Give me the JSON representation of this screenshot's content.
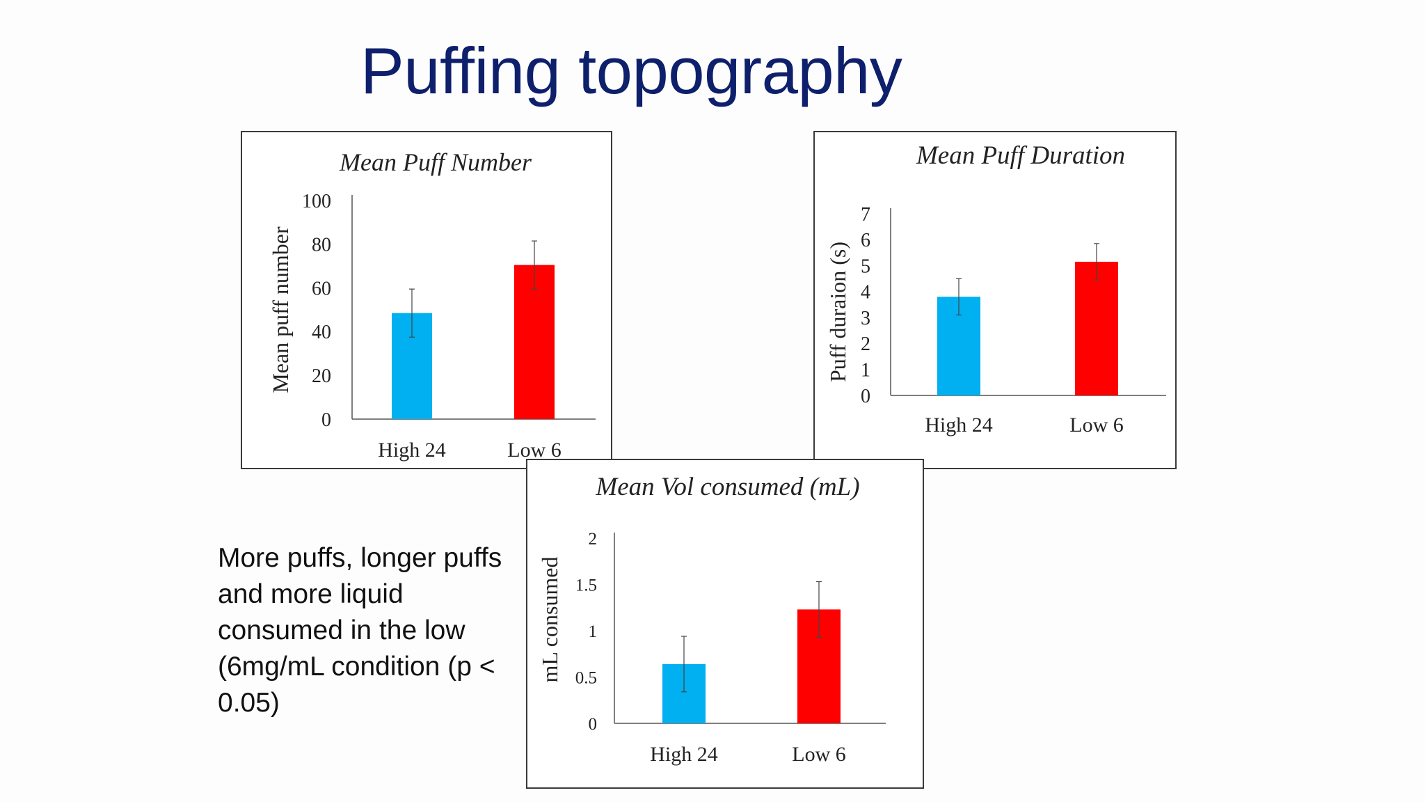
{
  "slide": {
    "title": "Puffing topography",
    "summary": "More puffs, longer puffs and more liquid consumed in the low (6mg/mL condition (p < 0.05)"
  },
  "colors": {
    "title": "#0e1f6b",
    "high_bar": "#00b0f0",
    "low_bar": "#ff0000"
  },
  "chart_data": [
    {
      "type": "bar",
      "title": "Mean Puff Number",
      "ylabel": "Mean puff number",
      "xlabel": "",
      "categories": [
        "High 24",
        "Low 6"
      ],
      "values": [
        48.5,
        70.5
      ],
      "errors": [
        11,
        11
      ],
      "ylim": [
        0,
        100
      ],
      "yticks": [
        0,
        20,
        40,
        60,
        80,
        100
      ],
      "ytick_labels": [
        "0",
        "20",
        "40",
        "60",
        "80",
        "100"
      ],
      "bar_colors": [
        "#00b0f0",
        "#ff0000"
      ],
      "grid": false
    },
    {
      "type": "bar",
      "title": "Mean Puff Duration",
      "ylabel": "Puff duraion (s)",
      "xlabel": "",
      "categories": [
        "High 24",
        "Low 6"
      ],
      "values": [
        3.8,
        5.15
      ],
      "errors": [
        0.7,
        0.7
      ],
      "ylim": [
        0,
        7
      ],
      "yticks": [
        0,
        1,
        2,
        3,
        4,
        5,
        6,
        7
      ],
      "ytick_labels": [
        "0",
        "1",
        "2",
        "3",
        "4",
        "5",
        "6",
        "7"
      ],
      "bar_colors": [
        "#00b0f0",
        "#ff0000"
      ],
      "grid": false
    },
    {
      "type": "bar",
      "title": "Mean Vol consumed (mL)",
      "ylabel": "mL consumed",
      "xlabel": "",
      "categories": [
        "High 24",
        "Low 6"
      ],
      "values": [
        0.64,
        1.23
      ],
      "errors": [
        0.3,
        0.3
      ],
      "ylim": [
        0,
        2
      ],
      "yticks": [
        0,
        0.5,
        1,
        1.5,
        2
      ],
      "ytick_labels": [
        "0",
        "0.5",
        "1",
        "1.5",
        "2"
      ],
      "bar_colors": [
        "#00b0f0",
        "#ff0000"
      ],
      "grid": false
    }
  ]
}
